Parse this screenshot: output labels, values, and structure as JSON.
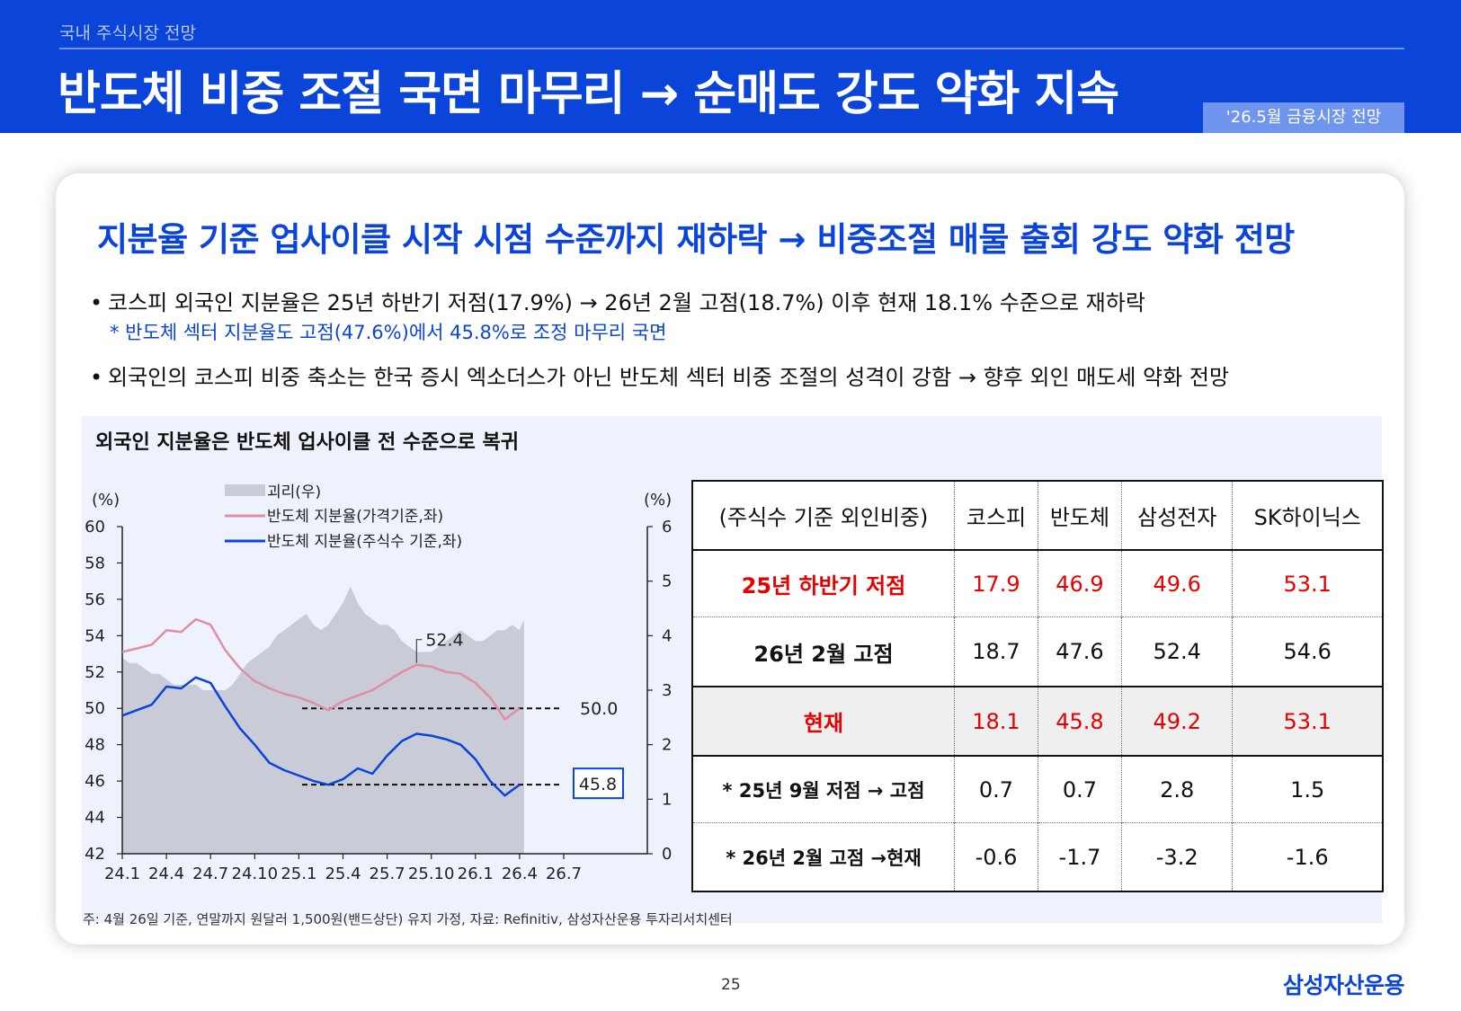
{
  "header": {
    "section": "국내 주식시장 전망",
    "title": "반도체 비중 조절 국면 마무리 → 순매도 강도 약화 지속",
    "badge": "'26.5월 금융시장 전망"
  },
  "body": {
    "headline": "지분율 기준 업사이클 시작 시점 수준까지 재하락 → 비중조절 매물 출회 강도 약화 전망",
    "bullet1": "코스피 외국인 지분율은 25년 하반기 저점(17.9%) → 26년 2월 고점(18.7%) 이후 현재 18.1% 수준으로 재하락",
    "note1": "* 반도체 섹터 지분율도 고점(47.6%)에서 45.8%로 조정 마무리 국면",
    "bullet2": "외국인의 코스피 비중 축소는 한국 증시 엑소더스가 아닌 반도체 섹터 비중 조절의 성격이 강함 → 향후 외인 매도세 약화 전망"
  },
  "panel": {
    "title": "외국인 지분율은 반도체 업사이클 전 수준으로 복귀"
  },
  "chart_data": {
    "type": "line",
    "left_unit": "(%)",
    "right_unit": "(%)",
    "x_ticks": [
      "24.1",
      "24.4",
      "24.7",
      "24.10",
      "25.1",
      "25.4",
      "25.7",
      "25.10",
      "26.1",
      "26.4",
      "26.7"
    ],
    "ylim": [
      42,
      60
    ],
    "y_ticks": [
      "60",
      "58",
      "56",
      "54",
      "52",
      "50",
      "48",
      "46",
      "44",
      "42"
    ],
    "y2lim": [
      0,
      6
    ],
    "y2_ticks": [
      "6",
      "5",
      "4",
      "3",
      "2",
      "1",
      "0"
    ],
    "legend_placement": "top-left",
    "series": [
      {
        "name": "괴리(우)",
        "kind": "area",
        "axis": "right",
        "color": "#c9cbd6",
        "x": [
          0,
          0.5,
          1,
          1.5,
          2,
          2.5,
          3,
          3.5,
          4,
          4.5,
          5,
          5.5,
          6,
          6.5,
          7,
          7.5,
          8,
          8.5,
          9,
          9.5,
          10,
          10.5,
          11,
          11.5,
          12,
          12.5,
          13,
          13.5,
          14,
          14.5,
          15,
          15.5,
          16,
          16.5,
          17,
          17.5,
          18,
          18.5,
          19,
          19.5,
          20,
          20.5,
          21,
          21.5,
          22,
          22.5,
          23,
          23.5,
          24,
          24.5,
          25,
          25.5,
          26,
          26.5,
          27,
          27.3
        ],
        "values": [
          3.6,
          3.5,
          3.5,
          3.4,
          3.3,
          3.3,
          3.2,
          3.1,
          3.1,
          3.1,
          3.1,
          3.0,
          3.0,
          3.0,
          3.0,
          3.1,
          3.3,
          3.5,
          3.6,
          3.7,
          3.8,
          4.0,
          4.1,
          4.2,
          4.3,
          4.4,
          4.2,
          4.1,
          4.2,
          4.4,
          4.6,
          4.9,
          4.6,
          4.4,
          4.3,
          4.2,
          4.2,
          4.1,
          3.9,
          3.8,
          3.7,
          3.7,
          3.7,
          3.8,
          3.9,
          4.0,
          4.1,
          4.0,
          3.9,
          3.9,
          4.0,
          4.1,
          4.1,
          4.2,
          4.1,
          4.3
        ]
      },
      {
        "name": "반도체 지분율(가격기준,좌)",
        "kind": "line",
        "axis": "left",
        "color": "#e28da0",
        "x": [
          0,
          1,
          2,
          3,
          4,
          5,
          6,
          7,
          8,
          9,
          10,
          11,
          12,
          13,
          14,
          15,
          16,
          17,
          18,
          19,
          20,
          21,
          22,
          23,
          24,
          25,
          26,
          27
        ],
        "values": [
          53.1,
          53.3,
          53.5,
          54.3,
          54.2,
          54.9,
          54.6,
          53.2,
          52.2,
          51.5,
          51.1,
          50.8,
          50.6,
          50.3,
          49.9,
          50.4,
          50.7,
          51.0,
          51.5,
          52.0,
          52.4,
          52.3,
          52.0,
          51.9,
          51.4,
          50.6,
          49.4,
          50.0
        ]
      },
      {
        "name": "반도체 지분율(주식수 기준,좌)",
        "kind": "line",
        "axis": "left",
        "color": "#0a44d9",
        "x": [
          0,
          1,
          2,
          3,
          4,
          5,
          6,
          7,
          8,
          9,
          10,
          11,
          12,
          13,
          14,
          15,
          16,
          17,
          18,
          19,
          20,
          21,
          22,
          23,
          24,
          25,
          26,
          27
        ],
        "values": [
          49.6,
          49.9,
          50.2,
          51.2,
          51.1,
          51.7,
          51.4,
          50.1,
          48.9,
          48.0,
          47.0,
          46.6,
          46.3,
          46.0,
          45.8,
          46.1,
          46.7,
          46.4,
          47.4,
          48.2,
          48.6,
          48.5,
          48.3,
          48.0,
          47.2,
          46.0,
          45.2,
          45.8
        ]
      }
    ],
    "reference_lines": [
      {
        "value": 50.0,
        "label": "50.0"
      },
      {
        "value": 45.8,
        "label": "45.8"
      }
    ],
    "annotations": [
      {
        "label": "52.4",
        "x": 20,
        "value": 52.4
      }
    ]
  },
  "table": {
    "header": [
      "(주식수 기준 외인비중)",
      "코스피",
      "반도체",
      "삼성전자",
      "SK하이닉스"
    ],
    "rows": [
      {
        "label": "25년 하반기 저점",
        "values": [
          "17.9",
          "46.9",
          "49.6",
          "53.1"
        ]
      },
      {
        "label": "26년 2월 고점",
        "values": [
          "18.7",
          "47.6",
          "52.4",
          "54.6"
        ]
      },
      {
        "label": "현재",
        "values": [
          "18.1",
          "45.8",
          "49.2",
          "53.1"
        ]
      },
      {
        "label": "* 25년 9월 저점 → 고점",
        "values": [
          "0.7",
          "0.7",
          "2.8",
          "1.5"
        ]
      },
      {
        "label": "* 26년 2월 고점 →현재",
        "values": [
          "-0.6",
          "-1.7",
          "-3.2",
          "-1.6"
        ]
      }
    ]
  },
  "footer": {
    "note": "주: 4월 26일 기준, 연말까지 원달러 1,500원(밴드상단) 유지 가정,  자료: Refinitiv, 삼성자산운용 투자리서치센터",
    "page": "25",
    "logo": "삼성자산운용"
  },
  "colors": {
    "brand_blue": "#0a44d9",
    "badge_blue": "#6f95ee",
    "highlight_red": "#e60000",
    "panel_bg": "#eef2fc"
  }
}
